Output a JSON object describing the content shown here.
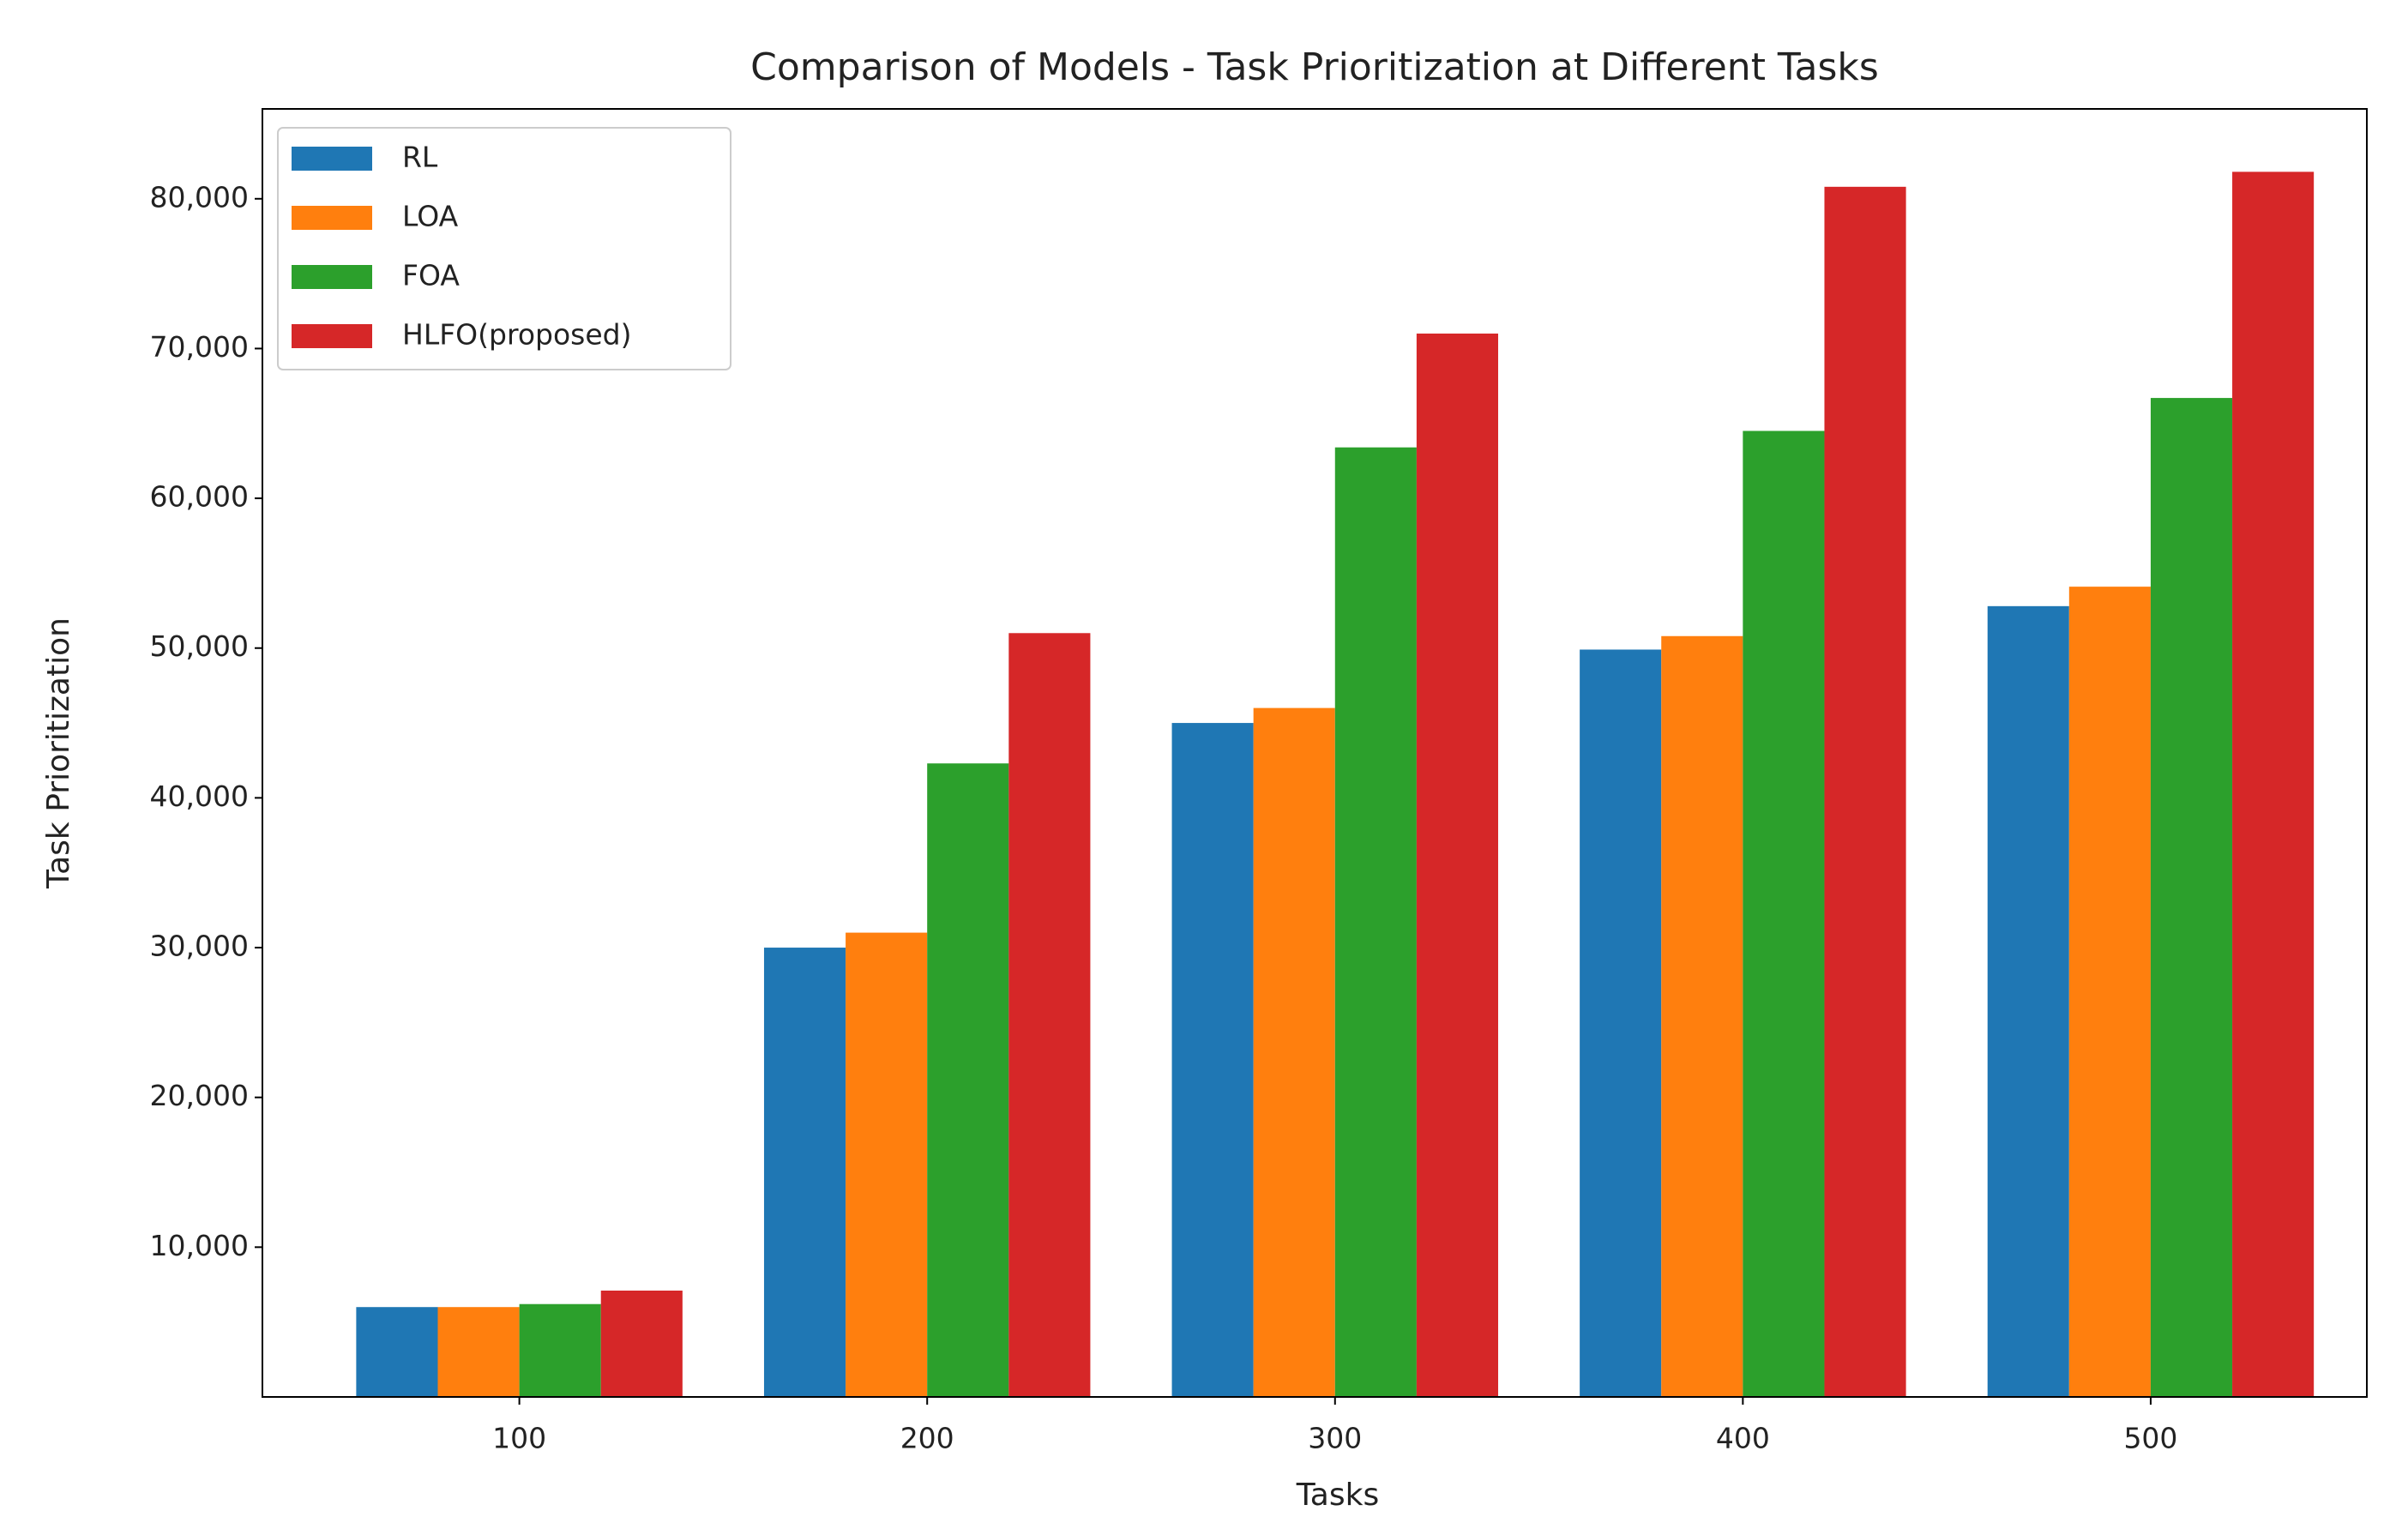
{
  "chart_data": {
    "type": "bar",
    "title": "Comparison of Models - Task Prioritization at Different Tasks",
    "x_label": "Tasks",
    "y_label": "Task Prioritization",
    "categories": [
      "100",
      "200",
      "300",
      "400",
      "500"
    ],
    "series": [
      {
        "name": "RL",
        "color": "#1f77b4",
        "values": [
          6000,
          30000,
          45000,
          49900,
          52800
        ]
      },
      {
        "name": "LOA",
        "color": "#ff7f0e",
        "values": [
          6000,
          31000,
          46000,
          50800,
          54100
        ]
      },
      {
        "name": "FOA",
        "color": "#2ca02c",
        "values": [
          6200,
          42300,
          63400,
          64500,
          66700
        ]
      },
      {
        "name": "HLFO(proposed)",
        "color": "#d62728",
        "values": [
          7100,
          51000,
          71000,
          80800,
          81800
        ]
      }
    ],
    "ylim": [
      0,
      86000
    ],
    "yticks": [
      {
        "value": 10000,
        "label": "10,000"
      },
      {
        "value": 20000,
        "label": "20,000"
      },
      {
        "value": 30000,
        "label": "30,000"
      },
      {
        "value": 40000,
        "label": "40,000"
      },
      {
        "value": 50000,
        "label": "50,000"
      },
      {
        "value": 60000,
        "label": "60,000"
      },
      {
        "value": 70000,
        "label": "70,000"
      },
      {
        "value": 80000,
        "label": "80,000"
      }
    ],
    "grid": false,
    "legend": "upper left"
  }
}
